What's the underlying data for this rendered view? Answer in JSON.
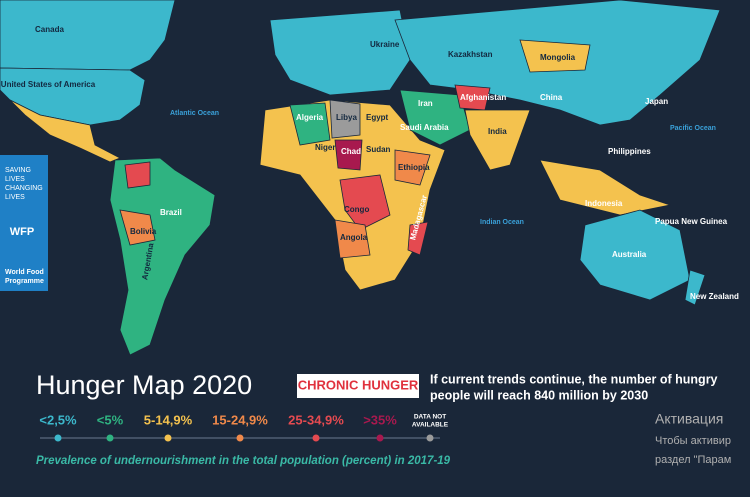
{
  "map": {
    "countries": [
      "Canada",
      "United States of America",
      "Brazil",
      "Bolivia",
      "Argentina",
      "Algeria",
      "Libya",
      "Egypt",
      "Niger",
      "Chad",
      "Sudan",
      "Ethiopia",
      "Congo",
      "Angola",
      "Madagascar",
      "Ukraine",
      "Kazakhstan",
      "Mongolia",
      "China",
      "Japan",
      "Saudi Arabia",
      "Iran",
      "Afghanistan",
      "India",
      "Philippines",
      "Indonesia",
      "Papua New Guinea",
      "Australia",
      "New Zealand"
    ],
    "oceans": [
      "Atlantic Ocean",
      "Pacific Ocean",
      "Indian Ocean"
    ]
  },
  "sidebar": {
    "slogan": [
      "SAVING",
      "LIVES",
      "CHANGING",
      "LIVES"
    ],
    "logo": "WFP",
    "org": [
      "World Food",
      "Programme"
    ]
  },
  "header": {
    "title": "Hunger Map 2020",
    "badge": "CHRONIC HUNGER",
    "subtitle": [
      "If current trends continue, the number of hungry",
      "people will reach 840 million by 2030"
    ]
  },
  "legend": {
    "items": [
      {
        "label": "<2,5%",
        "color": "#3cb8cc"
      },
      {
        "label": "<5%",
        "color": "#2fb381"
      },
      {
        "label": "5-14,9%",
        "color": "#f4c24e"
      },
      {
        "label": "15-24,9%",
        "color": "#f0894a"
      },
      {
        "label": "25-34,9%",
        "color": "#e44a50"
      },
      {
        "label": ">35%",
        "color": "#a8194e"
      },
      {
        "label": [
          "DATA NOT",
          "AVAILABLE"
        ],
        "color": "#9b9b9b"
      }
    ],
    "caption": "Prevalence of undernourishment in the total population (percent) in 2017-19"
  },
  "watermark": [
    "Активация",
    "Чтобы активир",
    "раздел \"Парам"
  ]
}
